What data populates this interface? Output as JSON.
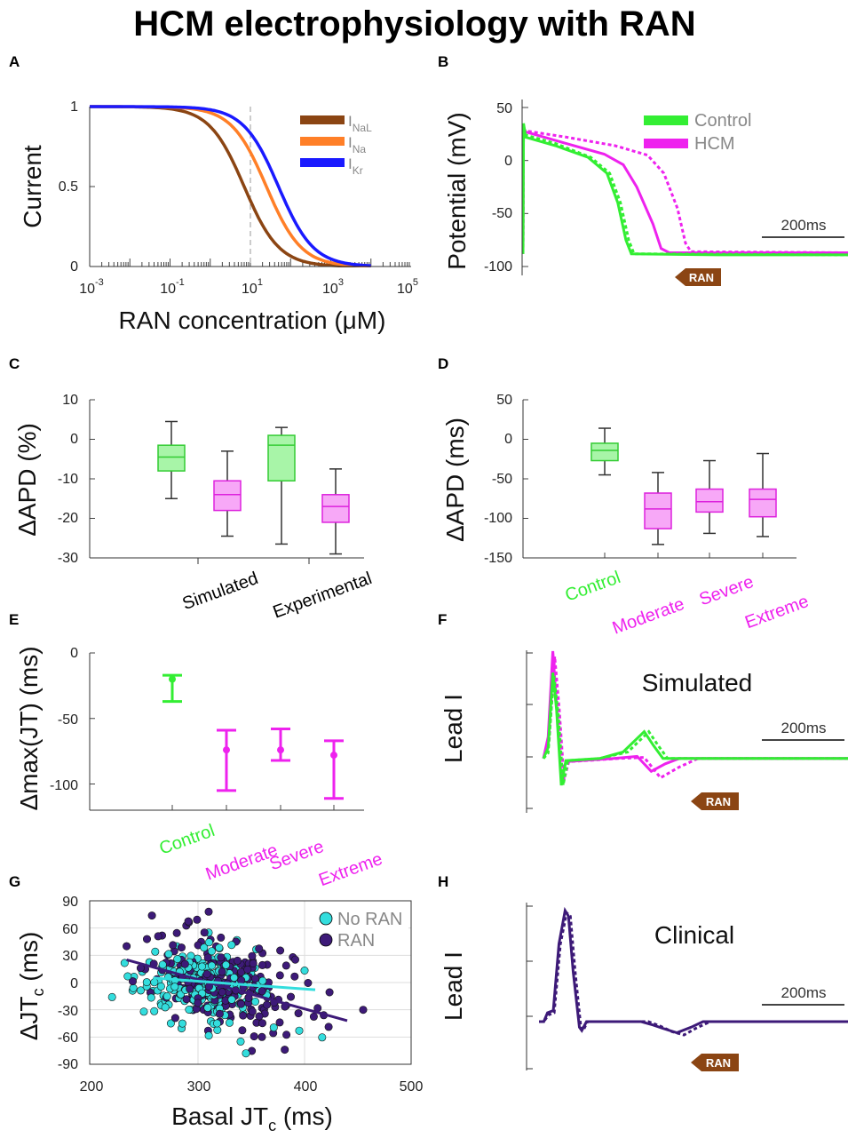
{
  "title": "HCM electrophysiology with RAN",
  "colors": {
    "control": "#33ee33",
    "hcm": "#ee22ee",
    "inal": "#8b4513",
    "ina": "#ff7f27",
    "ikr": "#1a1aff",
    "noran": "#33dddd",
    "ran": "#3d1a78",
    "arrow": "#8b4513"
  },
  "panels": {
    "A": {
      "label": "A",
      "ylabel": "Current",
      "xlabel": "RAN concentration (μM)",
      "yticks": [
        "1",
        "0.5",
        "0"
      ],
      "xtick_bases": [
        "10",
        "10",
        "10",
        "10",
        "10"
      ],
      "xtick_exps": [
        "-3",
        "-1",
        "1",
        "3",
        "5"
      ],
      "legend": [
        {
          "sym": "I",
          "sub": "NaL"
        },
        {
          "sym": "I",
          "sub": "Na"
        },
        {
          "sym": "I",
          "sub": "Kr"
        }
      ]
    },
    "B": {
      "label": "B",
      "ylabel": "Potential (mV)",
      "yticks": [
        "50",
        "0",
        "-50",
        "-100"
      ],
      "legend": [
        "Control",
        "HCM"
      ],
      "scale": "200ms",
      "arrow": "RAN"
    },
    "C": {
      "label": "C",
      "ylabel": "ΔAPD (%)",
      "yticks": [
        "10",
        "0",
        "-10",
        "-20",
        "-30"
      ],
      "groups": [
        "Simulated",
        "Experimental"
      ]
    },
    "D": {
      "label": "D",
      "ylabel": "ΔAPD (ms)",
      "yticks": [
        "50",
        "0",
        "-50",
        "-100",
        "-150"
      ],
      "cats": [
        "Control",
        "Moderate",
        "Severe",
        "Extreme"
      ]
    },
    "E": {
      "label": "E",
      "ylabel": "Δmax(JT) (ms)",
      "yticks": [
        "0",
        "-50",
        "-100"
      ],
      "cats": [
        "Control",
        "Moderate",
        "Severe",
        "Extreme"
      ]
    },
    "F": {
      "label": "F",
      "ylabel": "Lead I",
      "title": "Simulated",
      "scale": "200ms",
      "arrow": "RAN"
    },
    "G": {
      "label": "G",
      "ylabel_main": "ΔJT",
      "ylabel_sub": "c",
      "ylabel_unit": " (ms)",
      "xlabel_main": "Basal JT",
      "xlabel_sub": "c",
      "xlabel_unit": " (ms)",
      "yticks": [
        "90",
        "60",
        "30",
        "0",
        "-30",
        "-60",
        "-90"
      ],
      "xticks": [
        "200",
        "300",
        "400",
        "500"
      ],
      "legend": [
        "No RAN",
        "RAN"
      ]
    },
    "H": {
      "label": "H",
      "ylabel": "Lead I",
      "title": "Clinical",
      "scale": "200ms",
      "arrow": "RAN"
    }
  },
  "chart_data": [
    {
      "panel": "A",
      "type": "line",
      "title": "",
      "xlabel": "RAN concentration (μM)",
      "ylabel": "Current",
      "xscale": "log",
      "xlim": [
        0.001,
        100000
      ],
      "ylim": [
        0,
        1
      ],
      "marker_line_x": 10,
      "series": [
        {
          "name": "INaL",
          "ic50": 7,
          "hill": 1
        },
        {
          "name": "INa",
          "ic50": 25,
          "hill": 1
        },
        {
          "name": "IKr",
          "ic50": 50,
          "hill": 1
        }
      ]
    },
    {
      "panel": "B",
      "type": "line",
      "xlabel": "",
      "ylabel": "Potential (mV)",
      "xlim": [
        0,
        600
      ],
      "ylim": [
        -100,
        50
      ],
      "series": [
        {
          "name": "Control",
          "points": [
            [
              0,
              -88
            ],
            [
              1,
              35
            ],
            [
              5,
              22
            ],
            [
              60,
              14
            ],
            [
              120,
              3
            ],
            [
              155,
              -12
            ],
            [
              175,
              -40
            ],
            [
              190,
              -75
            ],
            [
              200,
              -88
            ],
            [
              360,
              -89
            ],
            [
              600,
              -89
            ]
          ]
        },
        {
          "name": "Control + RAN",
          "dashed": true,
          "points": [
            [
              0,
              -88
            ],
            [
              1,
              33
            ],
            [
              5,
              24
            ],
            [
              60,
              16
            ],
            [
              125,
              3
            ],
            [
              160,
              -12
            ],
            [
              180,
              -40
            ],
            [
              195,
              -75
            ],
            [
              205,
              -88
            ],
            [
              600,
              -89
            ]
          ]
        },
        {
          "name": "HCM",
          "points": [
            [
              0,
              -88
            ],
            [
              1,
              30
            ],
            [
              5,
              27
            ],
            [
              80,
              16
            ],
            [
              150,
              6
            ],
            [
              185,
              -4
            ],
            [
              210,
              -25
            ],
            [
              240,
              -60
            ],
            [
              255,
              -83
            ],
            [
              270,
              -87
            ],
            [
              600,
              -87
            ]
          ]
        },
        {
          "name": "HCM + RAN",
          "dashed": true,
          "points": [
            [
              0,
              -88
            ],
            [
              1,
              30
            ],
            [
              5,
              28
            ],
            [
              80,
              22
            ],
            [
              170,
              14
            ],
            [
              230,
              5
            ],
            [
              260,
              -12
            ],
            [
              285,
              -45
            ],
            [
              300,
              -78
            ],
            [
              310,
              -86
            ],
            [
              600,
              -87
            ]
          ]
        }
      ]
    },
    {
      "panel": "C",
      "type": "box",
      "ylabel": "ΔAPD (%)",
      "ylim": [
        -30,
        10
      ],
      "boxes": [
        {
          "group": "Simulated",
          "series": "Control",
          "min": -15,
          "q1": -8,
          "median": -4.5,
          "q3": -1.5,
          "max": 4.5
        },
        {
          "group": "Simulated",
          "series": "HCM",
          "min": -24.5,
          "q1": -18,
          "median": -14,
          "q3": -10.5,
          "max": -3
        },
        {
          "group": "Experimental",
          "series": "Control",
          "min": -26.5,
          "q1": -10.5,
          "median": -1.5,
          "q3": 1,
          "max": 3
        },
        {
          "group": "Experimental",
          "series": "HCM",
          "min": -29,
          "q1": -21,
          "median": -17,
          "q3": -14,
          "max": -7.5
        }
      ]
    },
    {
      "panel": "D",
      "type": "box",
      "ylabel": "ΔAPD (ms)",
      "ylim": [
        -150,
        50
      ],
      "boxes": [
        {
          "category": "Control",
          "min": -45,
          "q1": -27,
          "median": -14,
          "q3": -5,
          "max": 14
        },
        {
          "category": "Moderate",
          "min": -133,
          "q1": -113,
          "median": -88,
          "q3": -68,
          "max": -42
        },
        {
          "category": "Severe",
          "min": -119,
          "q1": -92,
          "median": -79,
          "q3": -63,
          "max": -27
        },
        {
          "category": "Extreme",
          "min": -123,
          "q1": -98,
          "median": -76,
          "q3": -63,
          "max": -18
        }
      ]
    },
    {
      "panel": "E",
      "type": "errorbar",
      "ylabel": "Δmax(JT) (ms)",
      "ylim": [
        -120,
        0
      ],
      "points": [
        {
          "category": "Control",
          "median": -20,
          "low": -37,
          "high": -17
        },
        {
          "category": "Moderate",
          "median": -74,
          "low": -105,
          "high": -59
        },
        {
          "category": "Severe",
          "median": -74,
          "low": -82,
          "high": -58
        },
        {
          "category": "Extreme",
          "median": -78,
          "low": -111,
          "high": -67
        }
      ]
    },
    {
      "panel": "F",
      "type": "line",
      "ylabel": "Lead I",
      "title": "Simulated",
      "xlim": [
        0,
        650
      ],
      "ylim": [
        -0.3,
        1.0
      ],
      "series": [
        {
          "name": "Control",
          "points": [
            [
              0,
              0
            ],
            [
              10,
              0.1
            ],
            [
              20,
              0.8
            ],
            [
              28,
              0.45
            ],
            [
              38,
              -0.25
            ],
            [
              48,
              -0.02
            ],
            [
              120,
              0
            ],
            [
              170,
              0.06
            ],
            [
              215,
              0.25
            ],
            [
              235,
              0.12
            ],
            [
              255,
              0
            ],
            [
              650,
              0
            ]
          ]
        },
        {
          "name": "Control + RAN",
          "dashed": true,
          "points": [
            [
              0,
              0
            ],
            [
              10,
              0.05
            ],
            [
              22,
              0.78
            ],
            [
              32,
              0.4
            ],
            [
              42,
              -0.25
            ],
            [
              52,
              -0.02
            ],
            [
              120,
              0
            ],
            [
              180,
              0.06
            ],
            [
              225,
              0.25
            ],
            [
              245,
              0.12
            ],
            [
              265,
              0
            ],
            [
              650,
              0
            ]
          ]
        },
        {
          "name": "HCM",
          "points": [
            [
              0,
              0
            ],
            [
              10,
              0.2
            ],
            [
              20,
              1.0
            ],
            [
              28,
              0.5
            ],
            [
              38,
              -0.2
            ],
            [
              48,
              -0.03
            ],
            [
              150,
              0
            ],
            [
              200,
              0.02
            ],
            [
              230,
              -0.12
            ],
            [
              260,
              -0.05
            ],
            [
              290,
              0
            ],
            [
              650,
              0
            ]
          ]
        },
        {
          "name": "HCM + RAN",
          "dashed": true,
          "points": [
            [
              0,
              0
            ],
            [
              12,
              0.15
            ],
            [
              24,
              0.95
            ],
            [
              34,
              0.45
            ],
            [
              44,
              -0.2
            ],
            [
              54,
              -0.03
            ],
            [
              160,
              0
            ],
            [
              215,
              0.01
            ],
            [
              250,
              -0.18
            ],
            [
              290,
              -0.08
            ],
            [
              330,
              0
            ],
            [
              650,
              0
            ]
          ]
        }
      ]
    },
    {
      "panel": "G",
      "type": "scatter",
      "xlabel": "Basal JTc (ms)",
      "ylabel": "ΔJTc (ms)",
      "xlim": [
        200,
        500
      ],
      "ylim": [
        -90,
        90
      ],
      "series": [
        {
          "name": "No RAN",
          "fit": [
            [
              258,
              5
            ],
            [
              410,
              -8
            ]
          ],
          "n": 230,
          "seed": 11,
          "xmean": 305,
          "xsd": 30,
          "ymean": -2,
          "ysd": 20
        },
        {
          "name": "RAN",
          "fit": [
            [
              233,
              25
            ],
            [
              440,
              -42
            ]
          ],
          "n": 230,
          "seed": 29,
          "xmean": 325,
          "xsd": 35,
          "ymean": -5,
          "ysd": 24
        }
      ],
      "extra_points": {
        "No RAN": [
          [
            280,
            40
          ],
          [
            340,
            -65
          ],
          [
            395,
            -53
          ],
          [
            310,
            55
          ],
          [
            345,
            -78
          ]
        ],
        "RAN": [
          [
            233,
            40
          ],
          [
            455,
            -30
          ],
          [
            418,
            -36
          ],
          [
            310,
            78
          ],
          [
            360,
            -60
          ]
        ]
      }
    },
    {
      "panel": "H",
      "type": "line",
      "ylabel": "Lead I",
      "title": "Clinical",
      "xlim": [
        0,
        650
      ],
      "ylim": [
        -0.2,
        1.0
      ],
      "series": [
        {
          "name": "Basal",
          "points": [
            [
              0,
              0
            ],
            [
              10,
              0
            ],
            [
              18,
              0.08
            ],
            [
              30,
              0.1
            ],
            [
              42,
              0.7
            ],
            [
              55,
              1.0
            ],
            [
              62,
              0.95
            ],
            [
              72,
              0.45
            ],
            [
              85,
              -0.05
            ],
            [
              90,
              -0.08
            ],
            [
              100,
              0
            ],
            [
              215,
              0
            ],
            [
              240,
              -0.03
            ],
            [
              260,
              -0.06
            ],
            [
              290,
              -0.1
            ],
            [
              320,
              -0.05
            ],
            [
              345,
              0
            ],
            [
              650,
              0
            ]
          ]
        },
        {
          "name": "RAN",
          "dashed": true,
          "points": [
            [
              0,
              0
            ],
            [
              10,
              0
            ],
            [
              20,
              0.06
            ],
            [
              32,
              0.08
            ],
            [
              45,
              0.7
            ],
            [
              58,
              0.98
            ],
            [
              66,
              0.95
            ],
            [
              76,
              0.45
            ],
            [
              88,
              -0.05
            ],
            [
              93,
              -0.08
            ],
            [
              102,
              0
            ],
            [
              230,
              0
            ],
            [
              255,
              -0.04
            ],
            [
              280,
              -0.09
            ],
            [
              305,
              -0.12
            ],
            [
              330,
              -0.06
            ],
            [
              360,
              0
            ],
            [
              650,
              0
            ]
          ]
        }
      ]
    }
  ]
}
